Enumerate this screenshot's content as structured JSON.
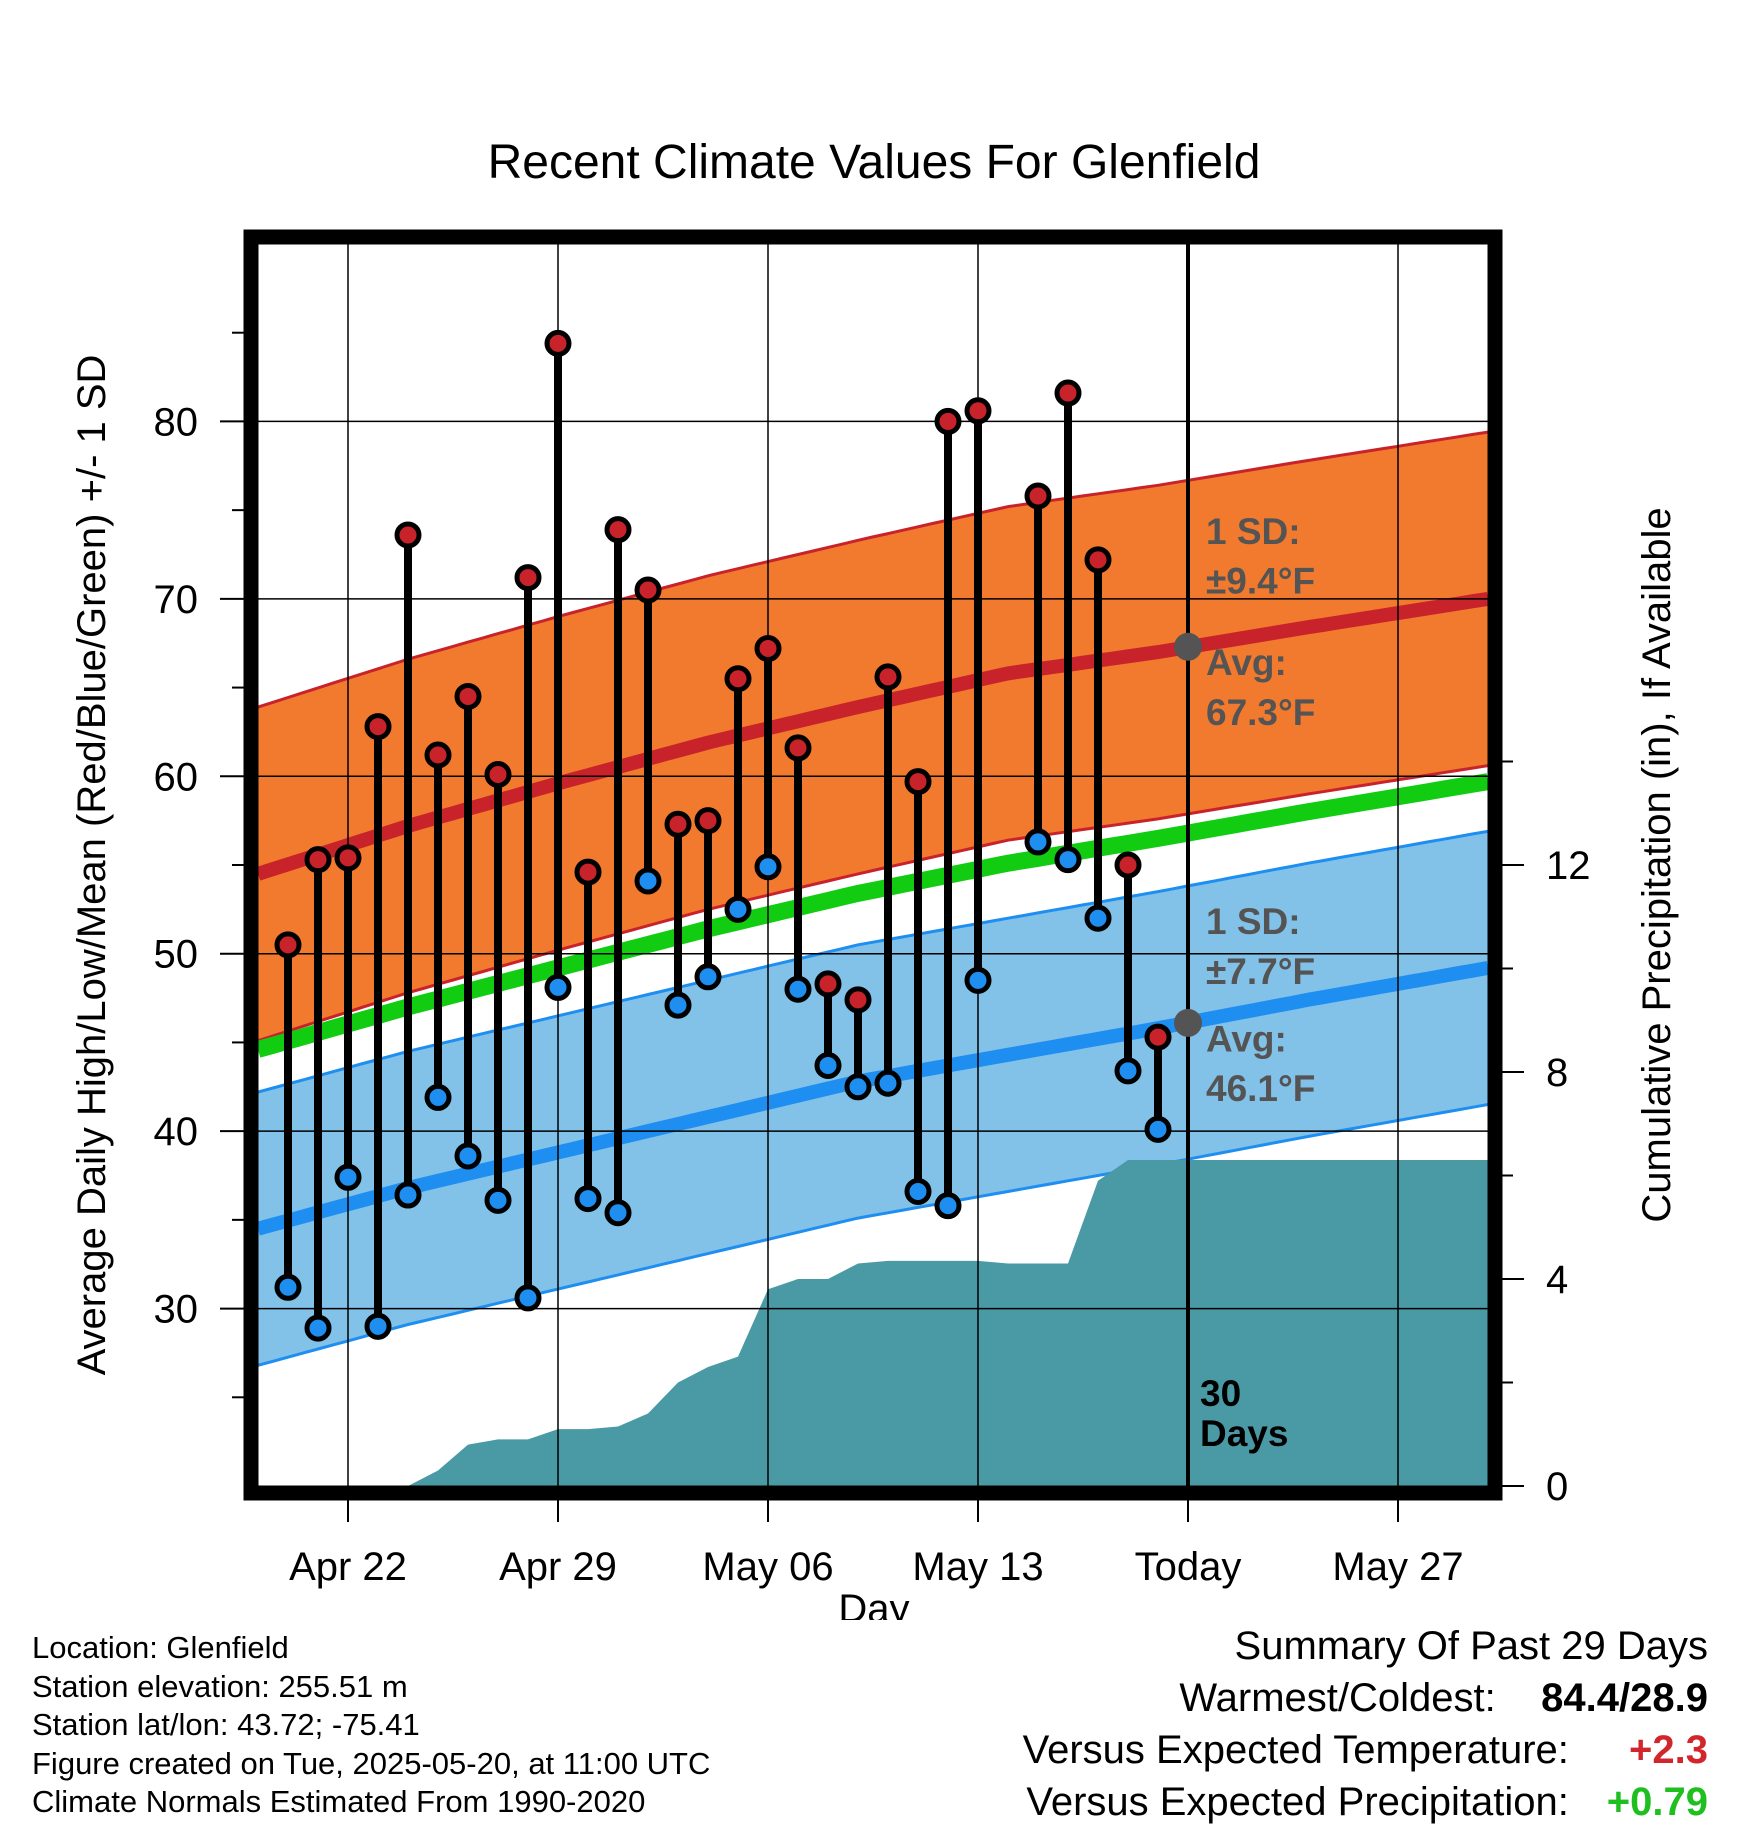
{
  "chart_data": {
    "type": "line",
    "title": "Recent Climate Values For Glenfield",
    "xlabel": "Day",
    "ylabel": "Average Daily High/Low/Mean (Red/Blue/Green) +/- 1 SD",
    "y2label": "Cumulative Precipitation (in), If Available",
    "ylim": [
      20,
      90
    ],
    "y2lim": [
      0,
      24
    ],
    "yticks": [
      30,
      40,
      50,
      60,
      70,
      80
    ],
    "y2ticks": [
      0,
      4,
      8,
      12
    ],
    "xticks": [
      {
        "day": "2025-04-22",
        "label": "Apr 22"
      },
      {
        "day": "2025-04-29",
        "label": "Apr 29"
      },
      {
        "day": "2025-05-06",
        "label": "May 06"
      },
      {
        "day": "2025-05-13",
        "label": "May 13"
      },
      {
        "day": "2025-05-20",
        "label": "Today"
      },
      {
        "day": "2025-05-27",
        "label": "May 27"
      }
    ],
    "xlim": [
      "2025-04-19",
      "2025-05-30"
    ],
    "today": "2025-05-20",
    "today_label": "30 Days",
    "grid": true,
    "normals": {
      "days": [
        "2025-04-19",
        "2025-04-24",
        "2025-04-29",
        "2025-05-04",
        "2025-05-09",
        "2025-05-14",
        "2025-05-19",
        "2025-05-24",
        "2025-05-30"
      ],
      "high_avg": [
        54.5,
        57.2,
        59.6,
        61.9,
        63.9,
        65.8,
        67.0,
        68.4,
        70.0
      ],
      "low_avg": [
        34.5,
        36.8,
        38.8,
        40.8,
        42.8,
        44.3,
        45.8,
        47.4,
        49.2
      ],
      "mean_avg": [
        44.6,
        47.0,
        49.2,
        51.4,
        53.4,
        55.1,
        56.5,
        58.0,
        59.7
      ]
    },
    "high_sd": 9.4,
    "low_sd": 7.7,
    "high_label_sd": "1 SD:",
    "high_label_sd_val": "±9.4°F",
    "high_label_avg": "Avg:",
    "high_label_avg_val": "67.3°F",
    "low_label_sd": "1 SD:",
    "low_label_sd_val": "±7.7°F",
    "low_label_avg": "Avg:",
    "low_label_avg_val": "46.1°F",
    "today_high_avg": 67.3,
    "today_low_avg": 46.1,
    "series": [
      {
        "name": "High",
        "color": "#c8232a",
        "days": [
          "2025-04-20",
          "2025-04-21",
          "2025-04-22",
          "2025-04-23",
          "2025-04-24",
          "2025-04-25",
          "2025-04-26",
          "2025-04-27",
          "2025-04-28",
          "2025-04-29",
          "2025-04-30",
          "2025-05-01",
          "2025-05-02",
          "2025-05-03",
          "2025-05-04",
          "2025-05-05",
          "2025-05-06",
          "2025-05-07",
          "2025-05-08",
          "2025-05-09",
          "2025-05-10",
          "2025-05-11",
          "2025-05-12",
          "2025-05-13",
          "2025-05-15",
          "2025-05-16",
          "2025-05-17",
          "2025-05-18",
          "2025-05-19"
        ],
        "values": [
          50.5,
          55.3,
          55.4,
          62.8,
          73.6,
          61.2,
          64.5,
          60.1,
          71.2,
          84.4,
          54.6,
          73.9,
          70.5,
          57.3,
          57.5,
          65.5,
          67.2,
          61.6,
          48.3,
          47.4,
          65.6,
          59.7,
          80.0,
          80.6,
          75.8,
          81.6,
          72.2,
          55.0,
          45.3
        ]
      },
      {
        "name": "Low",
        "color": "#1e8ff0",
        "days": [
          "2025-04-20",
          "2025-04-21",
          "2025-04-22",
          "2025-04-23",
          "2025-04-24",
          "2025-04-25",
          "2025-04-26",
          "2025-04-27",
          "2025-04-28",
          "2025-04-29",
          "2025-04-30",
          "2025-05-01",
          "2025-05-02",
          "2025-05-03",
          "2025-05-04",
          "2025-05-05",
          "2025-05-06",
          "2025-05-07",
          "2025-05-08",
          "2025-05-09",
          "2025-05-10",
          "2025-05-11",
          "2025-05-12",
          "2025-05-13",
          "2025-05-15",
          "2025-05-16",
          "2025-05-17",
          "2025-05-18",
          "2025-05-19"
        ],
        "values": [
          31.2,
          28.9,
          37.4,
          29.0,
          36.4,
          41.9,
          38.6,
          36.1,
          30.6,
          48.1,
          36.2,
          35.4,
          54.1,
          47.1,
          48.7,
          52.5,
          54.9,
          48.0,
          43.7,
          42.5,
          42.7,
          36.6,
          35.8,
          48.5,
          56.3,
          55.3,
          52.0,
          43.4,
          40.1
        ]
      }
    ],
    "precip": {
      "days": [
        "2025-04-19",
        "2025-04-22",
        "2025-04-23",
        "2025-04-24",
        "2025-04-25",
        "2025-04-26",
        "2025-04-27",
        "2025-04-28",
        "2025-04-29",
        "2025-04-30",
        "2025-05-01",
        "2025-05-02",
        "2025-05-03",
        "2025-05-04",
        "2025-05-05",
        "2025-05-06",
        "2025-05-07",
        "2025-05-08",
        "2025-05-09",
        "2025-05-10",
        "2025-05-11",
        "2025-05-12",
        "2025-05-13",
        "2025-05-14",
        "2025-05-15",
        "2025-05-16",
        "2025-05-17",
        "2025-05-18",
        "2025-05-19",
        "2025-05-20",
        "2025-05-30"
      ],
      "values": [
        0,
        0,
        0,
        0,
        0.3,
        0.8,
        0.9,
        0.9,
        1.1,
        1.1,
        1.15,
        1.4,
        2.0,
        2.3,
        2.5,
        3.8,
        4.0,
        4.0,
        4.3,
        4.35,
        4.35,
        4.35,
        4.35,
        4.3,
        4.3,
        4.3,
        5.9,
        6.3,
        6.3,
        6.3,
        6.3
      ]
    }
  },
  "colors": {
    "high_band": "#f27a2e",
    "high_line": "#c8232a",
    "low_band": "#82c1e8",
    "low_line": "#1e8ff0",
    "mean_line": "#12cc12",
    "precip": "#4a9aa6",
    "today_marker": "#545454"
  },
  "footer": {
    "location": "Location: Glenfield",
    "elevation": "Station elevation: 255.51 m",
    "latlon": "Station lat/lon: 43.72; -75.41",
    "created": "Figure created on Tue, 2025-05-20, at 11:00 UTC",
    "normals": "Climate Normals Estimated From 1990-2020"
  },
  "summary": {
    "heading": "Summary Of Past 29 Days",
    "warm_cold_label": "Warmest/Coldest:",
    "warm_cold_value": "84.4/28.9",
    "temp_label": "Versus Expected Temperature:",
    "temp_value": "+2.3",
    "precip_label": "Versus Expected Precipitation:",
    "precip_value": "+0.79"
  }
}
